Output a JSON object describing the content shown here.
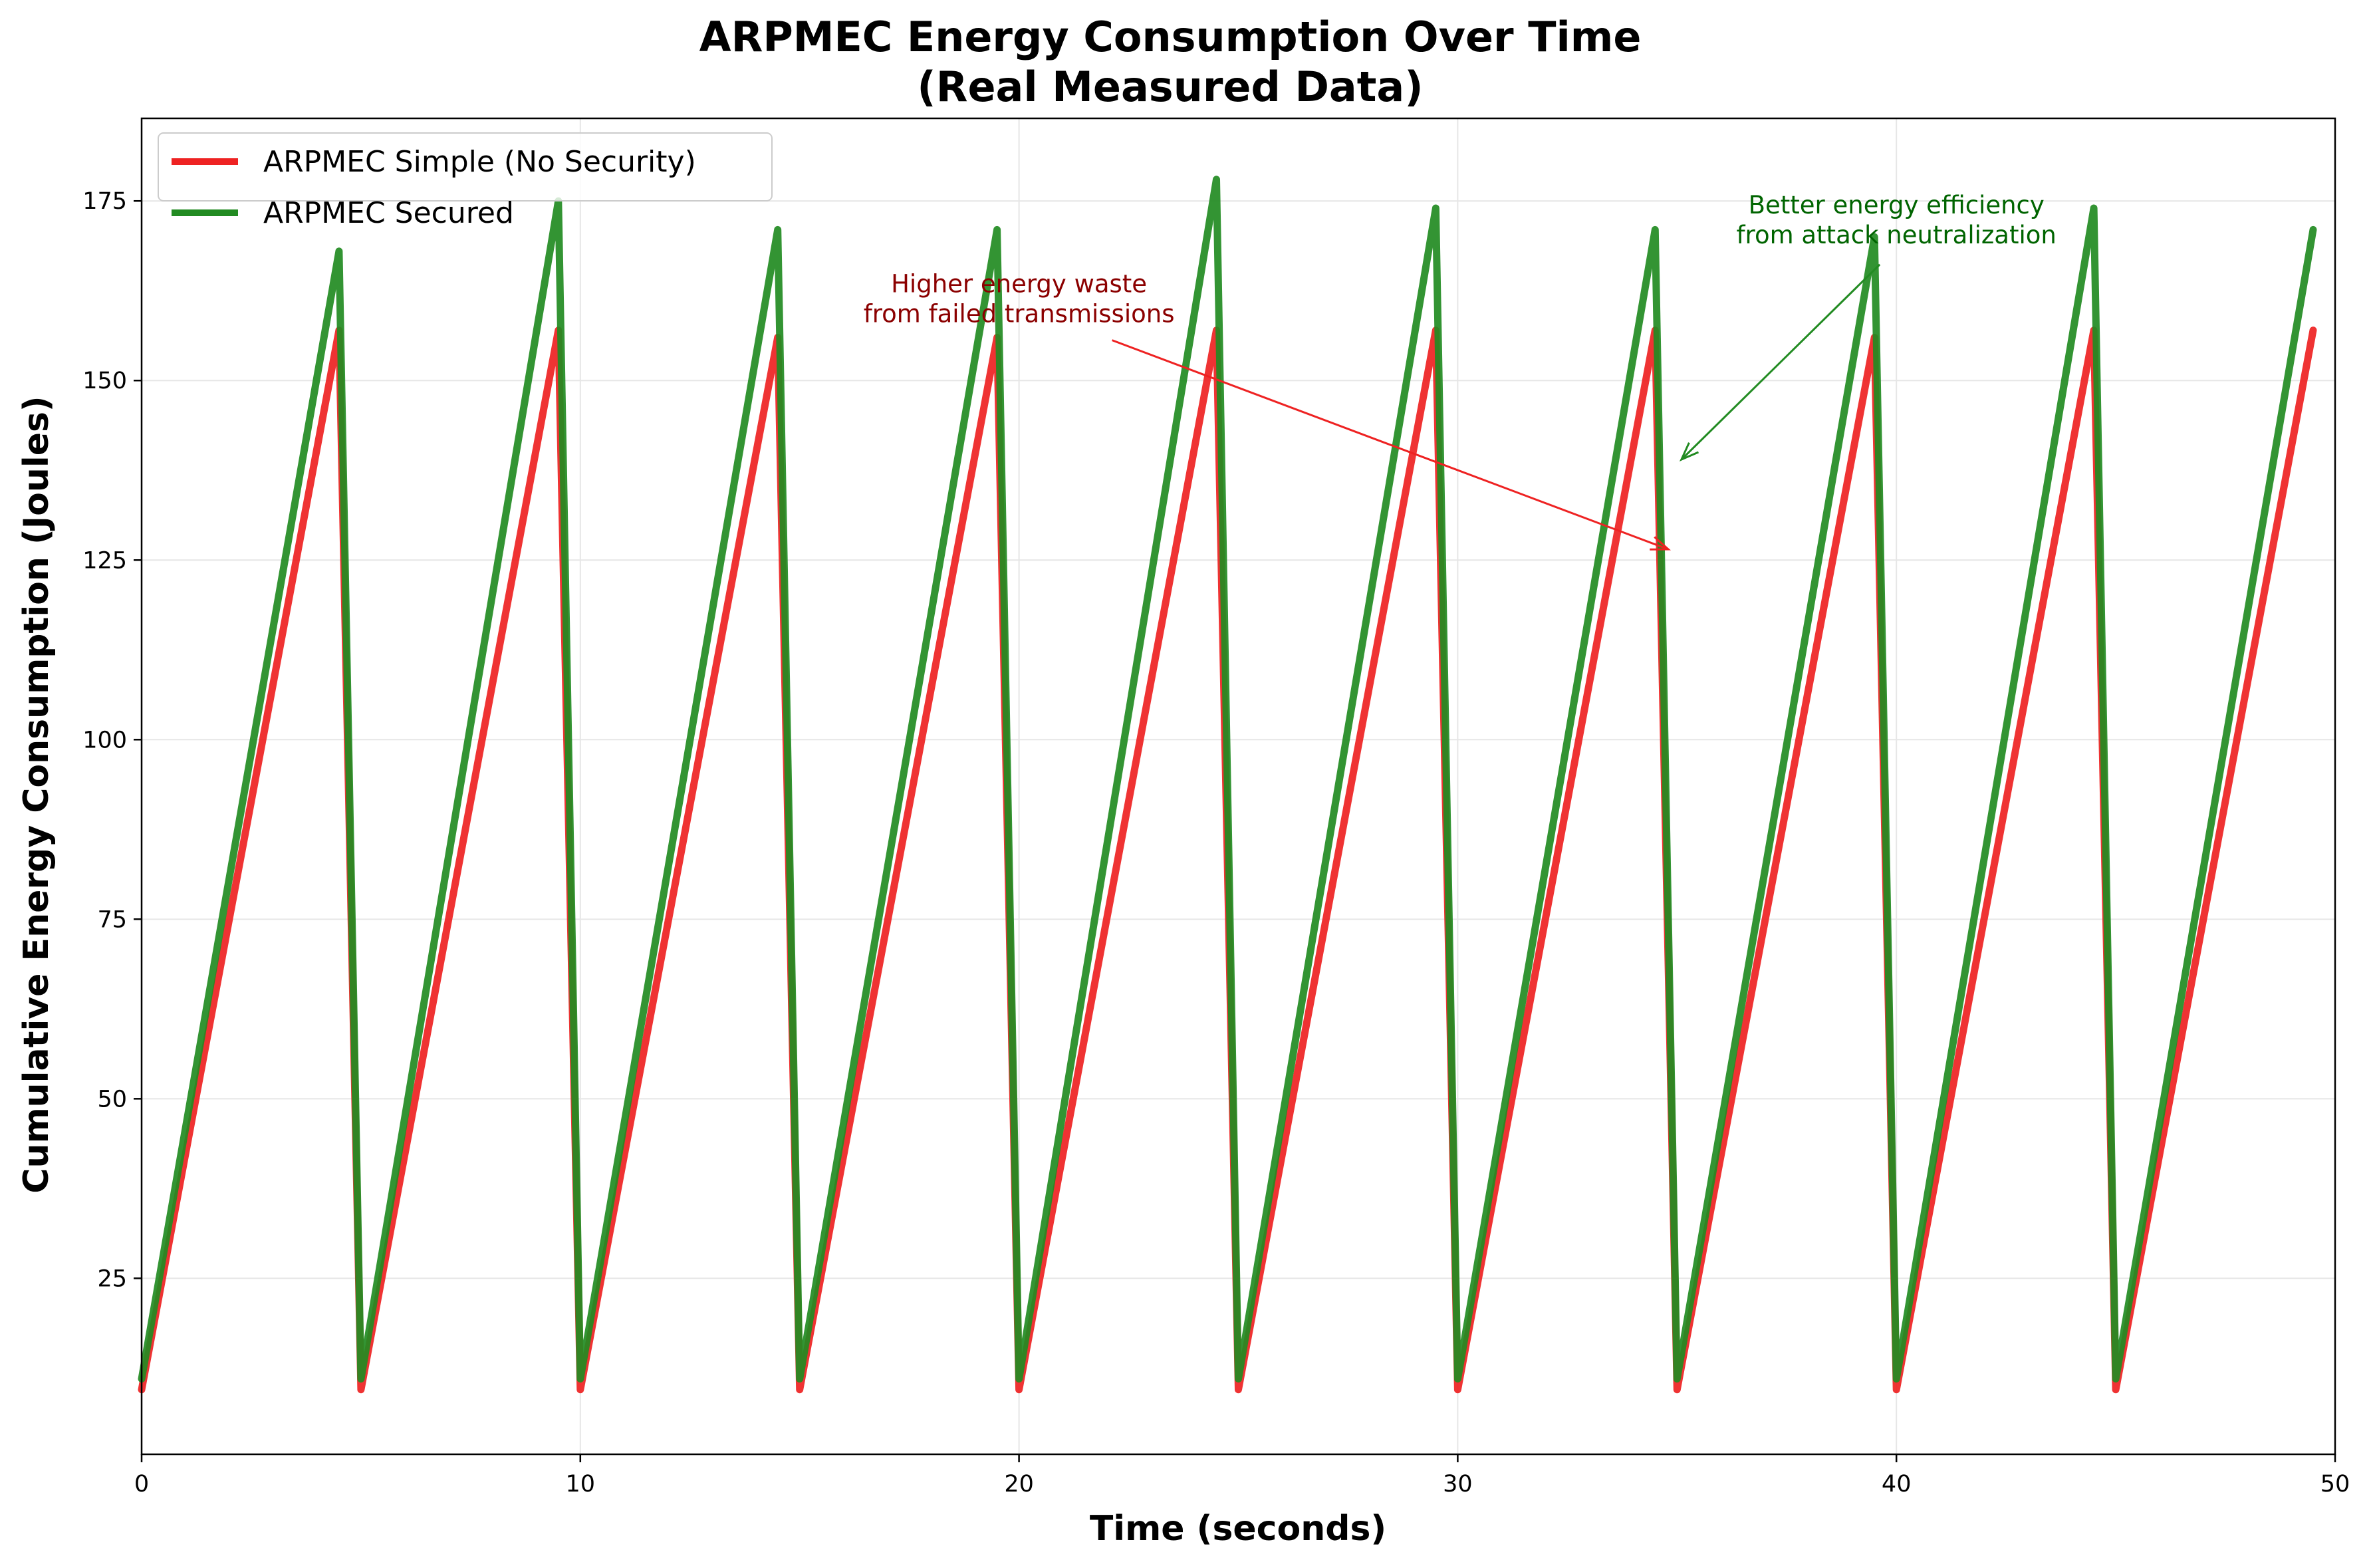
{
  "chart_data": {
    "type": "line",
    "title_line1": "ARPMEC Energy Consumption Over Time",
    "title_line2": "(Real Measured Data)",
    "xlabel": "Time (seconds)",
    "ylabel": "Cumulative Energy Consumption (Joules)",
    "xlim": [
      0,
      50
    ],
    "ylim": [
      0.5,
      186.5
    ],
    "xticks": [
      "0",
      "10",
      "20",
      "30",
      "40",
      "50"
    ],
    "xtick_values": [
      0,
      10,
      20,
      30,
      40,
      50
    ],
    "yticks": [
      "25",
      "50",
      "75",
      "100",
      "125",
      "150",
      "175"
    ],
    "ytick_values": [
      25,
      50,
      75,
      100,
      125,
      150,
      175
    ],
    "grid": true,
    "legend_position": "upper-left",
    "series": [
      {
        "name": "ARPMEC Simple (No Security)",
        "color": "#ee2222",
        "x": [
          0,
          4.5,
          5.0,
          9.5,
          10.0,
          14.5,
          15.0,
          19.5,
          20.0,
          24.5,
          25.0,
          29.5,
          30.0,
          34.5,
          35.0,
          39.5,
          40.0,
          44.5,
          45.0,
          49.5
        ],
        "y": [
          9.5,
          157,
          9.5,
          157,
          9.5,
          156,
          9.5,
          156,
          9.5,
          157,
          9.5,
          157,
          9.5,
          157,
          9.5,
          156,
          9.5,
          157,
          9.5,
          157
        ]
      },
      {
        "name": "ARPMEC Secured",
        "color": "#228b22",
        "x": [
          0,
          4.5,
          5.0,
          9.5,
          10.0,
          14.5,
          15.0,
          19.5,
          20.0,
          24.5,
          25.0,
          29.5,
          30.0,
          34.5,
          35.0,
          39.5,
          40.0,
          44.5,
          45.0,
          49.5
        ],
        "y": [
          11,
          168,
          11,
          175,
          11,
          171,
          11,
          171,
          11,
          178,
          11,
          174,
          11,
          171,
          11,
          170,
          11,
          174,
          11,
          171
        ]
      }
    ],
    "annotations": [
      {
        "line1": "Higher energy waste",
        "line2": "from failed transmissions",
        "color": "#8b0000",
        "arrow_color": "#ee2222",
        "text_xy": [
          20,
          159.5
        ],
        "arrow_to": [
          34.8,
          126.5
        ]
      },
      {
        "line1": "Better energy efficiency",
        "line2": "from attack neutralization",
        "color": "#006400",
        "arrow_color": "#228b22",
        "text_xy": [
          40,
          170.5
        ],
        "arrow_to": [
          35.1,
          139
        ]
      }
    ]
  }
}
